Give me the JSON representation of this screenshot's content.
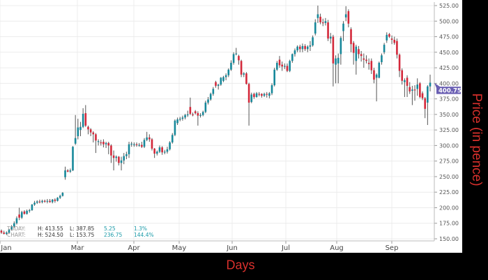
{
  "chart_data": {
    "type": "candlestick",
    "xlabel": "Days",
    "ylabel": "Price (in pence)",
    "ylim": [
      150,
      525
    ],
    "yticks": [
      "150.00",
      "175.00",
      "200.00",
      "225.00",
      "250.00",
      "275.00",
      "300.00",
      "325.00",
      "350.00",
      "375.00",
      "400.00",
      "425.00",
      "450.00",
      "475.00",
      "500.00",
      "525.00"
    ],
    "xticks": [
      "Jan",
      "Mar",
      "Apr",
      "May",
      "Jun",
      "Jul",
      "Aug",
      "Sep"
    ],
    "grid": true,
    "last_price": "400.75",
    "colors": {
      "up": "#17889a",
      "down": "#d3283a",
      "wick": "#555555",
      "last_price_tag": "#6a5fb3",
      "axis_title": "#d8302c"
    },
    "summary": {
      "today": {
        "label": "TODAY:",
        "high": "H: 413.55",
        "low": "L: 387.85",
        "change": "5.25",
        "pct": "1.3%"
      },
      "chart": {
        "label": "CHART:",
        "high": "H: 524.50",
        "low": "L: 153.75",
        "change": "236.75",
        "pct": "144.4%"
      }
    },
    "candles_ohlc": [
      [
        163,
        165,
        158,
        160
      ],
      [
        160,
        163,
        157,
        158
      ],
      [
        158,
        162,
        156,
        160
      ],
      [
        160,
        166,
        158,
        165
      ],
      [
        165,
        172,
        163,
        170
      ],
      [
        170,
        178,
        168,
        175
      ],
      [
        175,
        186,
        173,
        183
      ],
      [
        189,
        200,
        180,
        184
      ],
      [
        184,
        195,
        182,
        193
      ],
      [
        194,
        196,
        189,
        190
      ],
      [
        190,
        197,
        189,
        195
      ],
      [
        195,
        198,
        192,
        196
      ],
      [
        196,
        206,
        195,
        205
      ],
      [
        205,
        211,
        203,
        208
      ],
      [
        208,
        212,
        206,
        210
      ],
      [
        210,
        213,
        207,
        209
      ],
      [
        209,
        213,
        207,
        211
      ],
      [
        211,
        213,
        208,
        210
      ],
      [
        210,
        214,
        207,
        211
      ],
      [
        211,
        214,
        208,
        209
      ],
      [
        209,
        214,
        207,
        213
      ],
      [
        213,
        215,
        208,
        211
      ],
      [
        211,
        217,
        210,
        216
      ],
      [
        216,
        221,
        214,
        219
      ],
      [
        219,
        225,
        218,
        224
      ],
      [
        249,
        266,
        245,
        260
      ],
      [
        260,
        262,
        257,
        258
      ],
      [
        258,
        263,
        256,
        260
      ],
      [
        260,
        299,
        259,
        298
      ],
      [
        303,
        349,
        301,
        312
      ],
      [
        315,
        343,
        310,
        329
      ],
      [
        325,
        338,
        315,
        330
      ],
      [
        330,
        360,
        328,
        351
      ],
      [
        352,
        365,
        330,
        332
      ],
      [
        330,
        332,
        318,
        326
      ],
      [
        326,
        328,
        315,
        321
      ],
      [
        321,
        323,
        305,
        318
      ],
      [
        318,
        320,
        288,
        308
      ],
      [
        306,
        310,
        300,
        307
      ],
      [
        305,
        309,
        300,
        304
      ],
      [
        306,
        310,
        297,
        302
      ],
      [
        302,
        306,
        296,
        304
      ],
      [
        304,
        306,
        286,
        300
      ],
      [
        300,
        302,
        272,
        284
      ],
      [
        284,
        292,
        260,
        280
      ],
      [
        280,
        284,
        274,
        282
      ],
      [
        282,
        283,
        268,
        272
      ],
      [
        272,
        282,
        260,
        276
      ],
      [
        276,
        288,
        270,
        283
      ],
      [
        283,
        290,
        278,
        286
      ],
      [
        286,
        306,
        280,
        302
      ],
      [
        302,
        306,
        298,
        303
      ],
      [
        301,
        305,
        298,
        302
      ],
      [
        302,
        305,
        298,
        301
      ],
      [
        301,
        304,
        298,
        301
      ],
      [
        301,
        306,
        296,
        298
      ],
      [
        298,
        312,
        296,
        309
      ],
      [
        309,
        322,
        307,
        313
      ],
      [
        313,
        318,
        306,
        310
      ],
      [
        310,
        312,
        292,
        295
      ],
      [
        295,
        296,
        280,
        287
      ],
      [
        287,
        292,
        284,
        290
      ],
      [
        290,
        300,
        288,
        297
      ],
      [
        297,
        299,
        285,
        289
      ],
      [
        289,
        293,
        286,
        290
      ],
      [
        290,
        298,
        287,
        294
      ],
      [
        294,
        307,
        292,
        305
      ],
      [
        305,
        320,
        303,
        317
      ],
      [
        317,
        342,
        315,
        340
      ],
      [
        336,
        345,
        333,
        342
      ],
      [
        342,
        346,
        339,
        343
      ],
      [
        343,
        348,
        340,
        345
      ],
      [
        345,
        351,
        342,
        349
      ],
      [
        349,
        356,
        346,
        350
      ],
      [
        362,
        377,
        349,
        351
      ],
      [
        350,
        353,
        347,
        349
      ],
      [
        355,
        357,
        350,
        352
      ],
      [
        352,
        355,
        332,
        348
      ],
      [
        348,
        352,
        345,
        349
      ],
      [
        349,
        356,
        347,
        354
      ],
      [
        354,
        372,
        352,
        369
      ],
      [
        369,
        378,
        366,
        374
      ],
      [
        374,
        385,
        372,
        383
      ],
      [
        383,
        394,
        380,
        391
      ],
      [
        402,
        404,
        393,
        396
      ],
      [
        396,
        399,
        390,
        398
      ],
      [
        398,
        410,
        396,
        409
      ],
      [
        404,
        412,
        402,
        410
      ],
      [
        410,
        416,
        405,
        413
      ],
      [
        413,
        424,
        410,
        422
      ],
      [
        422,
        437,
        420,
        433
      ],
      [
        433,
        450,
        430,
        447
      ],
      [
        447,
        457,
        445,
        448
      ],
      [
        444,
        446,
        430,
        437
      ],
      [
        436,
        438,
        410,
        414
      ],
      [
        414,
        418,
        410,
        416
      ],
      [
        416,
        418,
        398,
        399
      ],
      [
        399,
        401,
        332,
        369
      ],
      [
        370,
        385,
        368,
        382
      ],
      [
        383,
        385,
        375,
        378
      ],
      [
        378,
        386,
        377,
        384
      ],
      [
        383,
        386,
        379,
        382
      ],
      [
        383,
        384,
        377,
        380
      ],
      [
        380,
        385,
        378,
        383
      ],
      [
        383,
        386,
        377,
        382
      ],
      [
        380,
        386,
        376,
        384
      ],
      [
        384,
        400,
        381,
        397
      ],
      [
        397,
        425,
        395,
        422
      ],
      [
        422,
        436,
        420,
        433
      ],
      [
        438,
        444,
        425,
        429
      ],
      [
        430,
        435,
        420,
        427
      ],
      [
        427,
        432,
        423,
        428
      ],
      [
        428,
        432,
        418,
        420
      ],
      [
        420,
        438,
        418,
        436
      ],
      [
        436,
        448,
        433,
        447
      ],
      [
        447,
        456,
        443,
        453
      ],
      [
        453,
        461,
        450,
        459
      ],
      [
        459,
        462,
        450,
        455
      ],
      [
        455,
        464,
        450,
        460
      ],
      [
        460,
        463,
        452,
        455
      ],
      [
        455,
        461,
        450,
        459
      ],
      [
        459,
        468,
        452,
        461
      ],
      [
        461,
        477,
        459,
        474
      ],
      [
        480,
        503,
        477,
        498
      ],
      [
        505,
        525,
        497,
        511
      ],
      [
        507,
        512,
        495,
        498
      ],
      [
        498,
        504,
        492,
        497
      ],
      [
        497,
        505,
        493,
        500
      ],
      [
        498,
        502,
        468,
        472
      ],
      [
        472,
        481,
        464,
        475
      ],
      [
        475,
        478,
        395,
        432
      ],
      [
        430,
        445,
        400,
        440
      ],
      [
        432,
        448,
        400,
        441
      ],
      [
        447,
        476,
        430,
        473
      ],
      [
        484,
        500,
        468,
        496
      ],
      [
        506,
        524,
        500,
        511
      ],
      [
        516,
        519,
        490,
        496
      ],
      [
        487,
        490,
        450,
        463
      ],
      [
        465,
        468,
        430,
        449
      ],
      [
        436,
        462,
        414,
        459
      ],
      [
        455,
        460,
        440,
        447
      ],
      [
        447,
        452,
        435,
        444
      ],
      [
        440,
        448,
        425,
        438
      ],
      [
        438,
        445,
        432,
        436
      ],
      [
        433,
        440,
        422,
        431
      ],
      [
        436,
        440,
        415,
        421
      ],
      [
        421,
        425,
        400,
        406
      ],
      [
        409,
        416,
        371,
        414
      ],
      [
        409,
        435,
        408,
        433
      ],
      [
        434,
        448,
        430,
        445
      ],
      [
        450,
        465,
        447,
        462
      ],
      [
        469,
        482,
        465,
        478
      ],
      [
        479,
        481,
        473,
        475
      ],
      [
        472,
        477,
        463,
        470
      ],
      [
        470,
        475,
        462,
        465
      ],
      [
        468,
        472,
        440,
        446
      ],
      [
        446,
        448,
        410,
        420
      ],
      [
        421,
        424,
        398,
        404
      ],
      [
        402,
        408,
        378,
        405
      ],
      [
        409,
        413,
        378,
        396
      ],
      [
        394,
        402,
        383,
        387
      ],
      [
        388,
        396,
        365,
        390
      ],
      [
        390,
        397,
        372,
        389
      ],
      [
        391,
        408,
        380,
        398
      ],
      [
        400,
        402,
        376,
        378
      ],
      [
        384,
        387,
        373,
        376
      ],
      [
        376,
        378,
        344,
        359
      ],
      [
        369,
        397,
        333,
        395
      ],
      [
        395,
        414,
        387,
        401
      ]
    ]
  }
}
